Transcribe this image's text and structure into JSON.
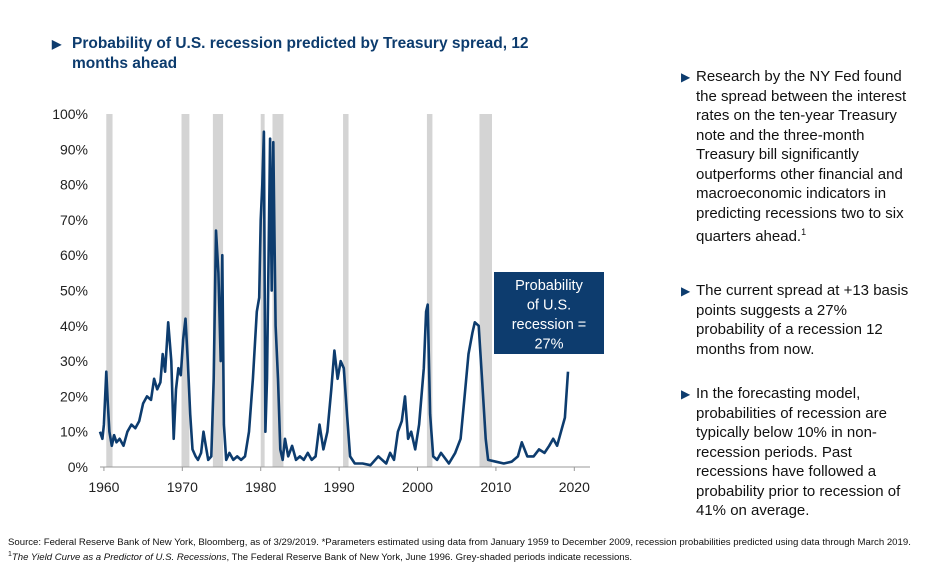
{
  "title": "Probability of U.S. recession predicted by Treasury spread, 12 months ahead",
  "chart_data": {
    "type": "line",
    "x": [
      1959.5,
      1959.8,
      1960.0,
      1960.3,
      1960.5,
      1960.7,
      1961.0,
      1961.3,
      1961.6,
      1962.0,
      1962.5,
      1963.0,
      1963.5,
      1964.0,
      1964.5,
      1965.0,
      1965.5,
      1966.0,
      1966.4,
      1966.8,
      1967.2,
      1967.5,
      1967.8,
      1968.2,
      1968.6,
      1968.9,
      1969.2,
      1969.5,
      1969.8,
      1970.1,
      1970.4,
      1970.7,
      1971.0,
      1971.3,
      1971.7,
      1972.0,
      1972.4,
      1972.7,
      1973.0,
      1973.3,
      1973.7,
      1974.0,
      1974.3,
      1974.6,
      1974.9,
      1975.1,
      1975.3,
      1975.6,
      1976.0,
      1976.5,
      1977.0,
      1977.5,
      1978.0,
      1978.5,
      1979.0,
      1979.5,
      1979.8,
      1980.0,
      1980.2,
      1980.4,
      1980.6,
      1980.8,
      1981.0,
      1981.2,
      1981.4,
      1981.6,
      1981.9,
      1982.2,
      1982.5,
      1982.8,
      1983.1,
      1983.5,
      1984.0,
      1984.5,
      1985.0,
      1985.5,
      1986.0,
      1986.5,
      1987.0,
      1987.5,
      1988.0,
      1988.5,
      1989.0,
      1989.4,
      1989.8,
      1990.2,
      1990.6,
      1991.0,
      1991.4,
      1992.0,
      1993.0,
      1994.0,
      1995.0,
      1996.0,
      1996.5,
      1997.0,
      1997.5,
      1998.0,
      1998.4,
      1998.8,
      1999.2,
      1999.7,
      2000.2,
      2000.8,
      2001.1,
      2001.3,
      2001.6,
      2002.0,
      2002.5,
      2003.0,
      2004.0,
      2004.8,
      2005.5,
      2006.0,
      2006.5,
      2007.0,
      2007.3,
      2007.8,
      2008.2,
      2008.7,
      2009.0,
      2010.0,
      2011.0,
      2012.0,
      2012.8,
      2013.3,
      2014.0,
      2014.8,
      2015.5,
      2016.2,
      2016.8,
      2017.3,
      2017.8,
      2018.3,
      2018.8,
      2019.2
    ],
    "values": [
      10,
      8,
      12,
      27,
      18,
      10,
      6,
      9,
      7,
      8,
      6,
      10,
      12,
      11,
      13,
      18,
      20,
      19,
      25,
      22,
      24,
      32,
      27,
      41,
      30,
      8,
      22,
      28,
      26,
      36,
      42,
      30,
      15,
      5,
      3,
      2,
      4,
      10,
      6,
      2,
      3,
      25,
      67,
      55,
      30,
      60,
      12,
      2,
      4,
      2,
      3,
      2,
      3,
      10,
      25,
      44,
      48,
      70,
      80,
      95,
      10,
      25,
      60,
      93,
      50,
      92,
      40,
      25,
      5,
      2,
      8,
      3,
      6,
      2,
      3,
      2,
      4,
      2,
      3,
      12,
      5,
      10,
      22,
      33,
      25,
      30,
      28,
      15,
      3,
      1,
      1,
      0.5,
      3,
      1,
      4,
      2,
      10,
      13,
      20,
      8,
      10,
      5,
      12,
      28,
      44,
      46,
      15,
      3,
      2,
      4,
      1,
      4,
      8,
      20,
      32,
      38,
      41,
      40,
      26,
      8,
      2,
      1.5,
      1,
      1.5,
      3,
      7,
      3,
      3,
      5,
      4,
      6,
      8,
      6,
      10,
      14,
      27
    ],
    "color": "#0d3c6e",
    "recessions": [
      [
        1960.3,
        1961.1
      ],
      [
        1969.9,
        1970.9
      ],
      [
        1973.9,
        1975.2
      ],
      [
        1980.0,
        1980.5
      ],
      [
        1981.5,
        1982.9
      ],
      [
        1990.5,
        1991.2
      ],
      [
        2001.2,
        2001.9
      ],
      [
        2007.9,
        2009.5
      ]
    ],
    "recession_color": "#d4d4d4",
    "xlim": [
      1959.5,
      2022
    ],
    "xticks": [
      1960,
      1970,
      1980,
      1990,
      2000,
      2010,
      2020
    ],
    "ylim": [
      0,
      100
    ],
    "yticks": [
      {
        "value": 0,
        "label": "0%"
      },
      {
        "value": 10,
        "label": "10%"
      },
      {
        "value": 20,
        "label": "20%"
      },
      {
        "value": 30,
        "label": "30%"
      },
      {
        "value": 40,
        "label": "40%"
      },
      {
        "value": 50,
        "label": "50%"
      },
      {
        "value": 60,
        "label": "60%"
      },
      {
        "value": 70,
        "label": "70%"
      },
      {
        "value": 80,
        "label": "80%"
      },
      {
        "value": 90,
        "label": "90%"
      },
      {
        "value": 100,
        "label": "100%"
      }
    ],
    "annotation": [
      "Probability",
      "of U.S.",
      "recession =",
      "27%"
    ]
  },
  "bullets": [
    {
      "text": "Research by the NY Fed found the spread between the interest rates on the ten-year Treasury note and the three-month Treasury bill significantly outperforms other financial and macroeconomic indicators in predicting recessions two to six quarters ahead.",
      "note": "1"
    },
    {
      "text": "The current spread at +13 basis points suggests a 27% probability of a recession 12 months from now."
    },
    {
      "text": "In the forecasting model, probabilities of recession are typically below 10% in non-recession periods. Past recessions have followed a probability prior to recession of 41% on average."
    }
  ],
  "source": [
    "Source: Federal Reserve Bank of New York, Bloomberg, as of 3/29/2019. *Parameters estimated using data from January 1959 to December 2009, recession probabilities predicted using data through March 2019. ",
    "1",
    "The Yield Curve as a Predictor of U.S. Recessions",
    ", The Federal Reserve Bank of New York, June 1996. Grey-shaded periods indicate recessions."
  ]
}
